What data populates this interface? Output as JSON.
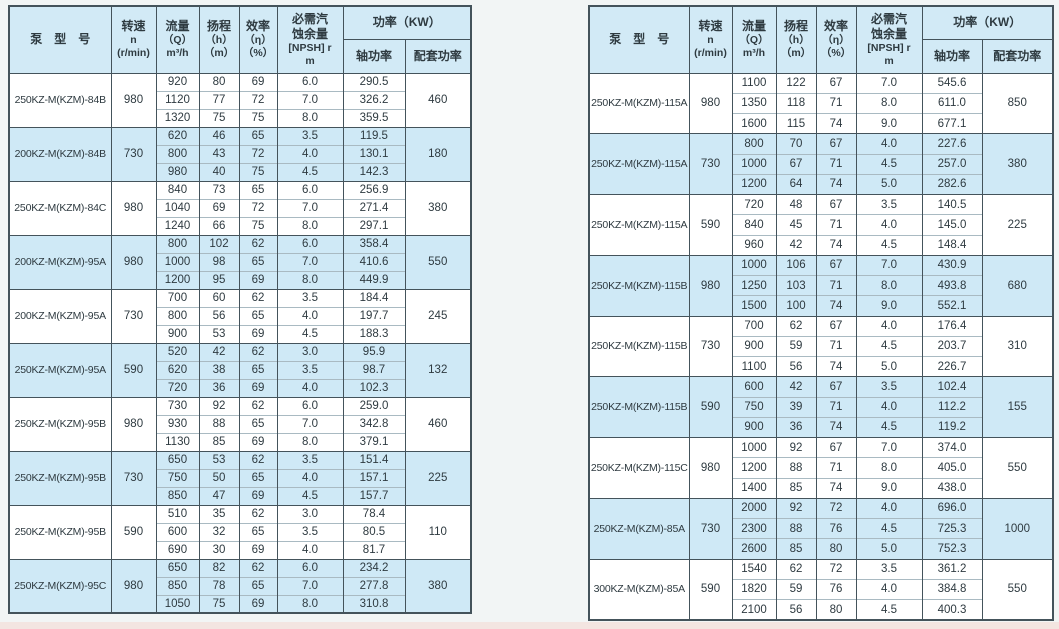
{
  "colors": {
    "page_bg": "#f2f5f5",
    "header_bg": "#d2eaf6",
    "shaded_row_bg": "#cfe9f6",
    "border_dark": "#44535b",
    "border_light": "#a9bac2",
    "text": "#2e3a40",
    "bottom_strip": "#f3e5e1"
  },
  "header": {
    "model": "泵　型　号",
    "speed": [
      "转速",
      "n",
      "(r/min)"
    ],
    "flow": [
      "流量",
      "（Q）",
      "m³/h"
    ],
    "head": [
      "扬程",
      "（h）",
      "（m）"
    ],
    "eff": [
      "效率",
      "（η）",
      "（%）"
    ],
    "npsh": [
      "必需汽",
      "蚀余量",
      "[NPSH] r",
      "m"
    ],
    "power": "功率（KW）",
    "shaft": "轴功率",
    "match": "配套功率"
  },
  "tables": [
    {
      "name": "left",
      "groups": [
        {
          "model": "250KZ-M(KZM)-84B",
          "speed": "980",
          "shaded": false,
          "match": "460",
          "rows": [
            [
              "920",
              "80",
              "69",
              "6.0",
              "290.5"
            ],
            [
              "1120",
              "77",
              "72",
              "7.0",
              "326.2"
            ],
            [
              "1320",
              "75",
              "75",
              "8.0",
              "359.5"
            ]
          ]
        },
        {
          "model": "200KZ-M(KZM)-84B",
          "speed": "730",
          "shaded": true,
          "match": "180",
          "rows": [
            [
              "620",
              "46",
              "65",
              "3.5",
              "119.5"
            ],
            [
              "800",
              "43",
              "72",
              "4.0",
              "130.1"
            ],
            [
              "980",
              "40",
              "75",
              "4.5",
              "142.3"
            ]
          ]
        },
        {
          "model": "250KZ-M(KZM)-84C",
          "speed": "980",
          "shaded": false,
          "match": "380",
          "rows": [
            [
              "840",
              "73",
              "65",
              "6.0",
              "256.9"
            ],
            [
              "1040",
              "69",
              "72",
              "7.0",
              "271.4"
            ],
            [
              "1240",
              "66",
              "75",
              "8.0",
              "297.1"
            ]
          ]
        },
        {
          "model": "200KZ-M(KZM)-95A",
          "speed": "980",
          "shaded": true,
          "match": "550",
          "rows": [
            [
              "800",
              "102",
              "62",
              "6.0",
              "358.4"
            ],
            [
              "1000",
              "98",
              "65",
              "7.0",
              "410.6"
            ],
            [
              "1200",
              "95",
              "69",
              "8.0",
              "449.9"
            ]
          ]
        },
        {
          "model": "200KZ-M(KZM)-95A",
          "speed": "730",
          "shaded": false,
          "match": "245",
          "rows": [
            [
              "700",
              "60",
              "62",
              "3.5",
              "184.4"
            ],
            [
              "800",
              "56",
              "65",
              "4.0",
              "197.7"
            ],
            [
              "900",
              "53",
              "69",
              "4.5",
              "188.3"
            ]
          ]
        },
        {
          "model": "250KZ-M(KZM)-95A",
          "speed": "590",
          "shaded": true,
          "match": "132",
          "rows": [
            [
              "520",
              "42",
              "62",
              "3.0",
              "95.9"
            ],
            [
              "620",
              "38",
              "65",
              "3.5",
              "98.7"
            ],
            [
              "720",
              "36",
              "69",
              "4.0",
              "102.3"
            ]
          ]
        },
        {
          "model": "250KZ-M(KZM)-95B",
          "speed": "980",
          "shaded": false,
          "match": "460",
          "rows": [
            [
              "730",
              "92",
              "62",
              "6.0",
              "259.0"
            ],
            [
              "930",
              "88",
              "65",
              "7.0",
              "342.8"
            ],
            [
              "1130",
              "85",
              "69",
              "8.0",
              "379.1"
            ]
          ]
        },
        {
          "model": "250KZ-M(KZM)-95B",
          "speed": "730",
          "shaded": true,
          "match": "225",
          "rows": [
            [
              "650",
              "53",
              "62",
              "3.5",
              "151.4"
            ],
            [
              "750",
              "50",
              "65",
              "4.0",
              "157.1"
            ],
            [
              "850",
              "47",
              "69",
              "4.5",
              "157.7"
            ]
          ]
        },
        {
          "model": "250KZ-M(KZM)-95B",
          "speed": "590",
          "shaded": false,
          "match": "110",
          "rows": [
            [
              "510",
              "35",
              "62",
              "3.0",
              "78.4"
            ],
            [
              "600",
              "32",
              "65",
              "3.5",
              "80.5"
            ],
            [
              "690",
              "30",
              "69",
              "4.0",
              "81.7"
            ]
          ]
        },
        {
          "model": "250KZ-M(KZM)-95C",
          "speed": "980",
          "shaded": true,
          "match": "380",
          "rows": [
            [
              "650",
              "82",
              "62",
              "6.0",
              "234.2"
            ],
            [
              "850",
              "78",
              "65",
              "7.0",
              "277.8"
            ],
            [
              "1050",
              "75",
              "69",
              "8.0",
              "310.8"
            ]
          ]
        }
      ]
    },
    {
      "name": "right",
      "groups": [
        {
          "model": "250KZ-M(KZM)-115A",
          "speed": "980",
          "shaded": false,
          "match": "850",
          "rows": [
            [
              "1100",
              "122",
              "67",
              "7.0",
              "545.6"
            ],
            [
              "1350",
              "118",
              "71",
              "8.0",
              "611.0"
            ],
            [
              "1600",
              "115",
              "74",
              "9.0",
              "677.1"
            ]
          ]
        },
        {
          "model": "250KZ-M(KZM)-115A",
          "speed": "730",
          "shaded": true,
          "match": "380",
          "rows": [
            [
              "800",
              "70",
              "67",
              "4.0",
              "227.6"
            ],
            [
              "1000",
              "67",
              "71",
              "4.5",
              "257.0"
            ],
            [
              "1200",
              "64",
              "74",
              "5.0",
              "282.6"
            ]
          ]
        },
        {
          "model": "250KZ-M(KZM)-115A",
          "speed": "590",
          "shaded": false,
          "match": "225",
          "rows": [
            [
              "720",
              "48",
              "67",
              "3.5",
              "140.5"
            ],
            [
              "840",
              "45",
              "71",
              "4.0",
              "145.0"
            ],
            [
              "960",
              "42",
              "74",
              "4.5",
              "148.4"
            ]
          ]
        },
        {
          "model": "250KZ-M(KZM)-115B",
          "speed": "980",
          "shaded": true,
          "match": "680",
          "rows": [
            [
              "1000",
              "106",
              "67",
              "7.0",
              "430.9"
            ],
            [
              "1250",
              "103",
              "71",
              "8.0",
              "493.8"
            ],
            [
              "1500",
              "100",
              "74",
              "9.0",
              "552.1"
            ]
          ]
        },
        {
          "model": "250KZ-M(KZM)-115B",
          "speed": "730",
          "shaded": false,
          "match": "310",
          "rows": [
            [
              "700",
              "62",
              "67",
              "4.0",
              "176.4"
            ],
            [
              "900",
              "59",
              "71",
              "4.5",
              "203.7"
            ],
            [
              "1100",
              "56",
              "74",
              "5.0",
              "226.7"
            ]
          ]
        },
        {
          "model": "250KZ-M(KZM)-115B",
          "speed": "590",
          "shaded": true,
          "match": "155",
          "rows": [
            [
              "600",
              "42",
              "67",
              "3.5",
              "102.4"
            ],
            [
              "750",
              "39",
              "71",
              "4.0",
              "112.2"
            ],
            [
              "900",
              "36",
              "74",
              "4.5",
              "119.2"
            ]
          ]
        },
        {
          "model": "250KZ-M(KZM)-115C",
          "speed": "980",
          "shaded": false,
          "match": "550",
          "rows": [
            [
              "1000",
              "92",
              "67",
              "7.0",
              "374.0"
            ],
            [
              "1200",
              "88",
              "71",
              "8.0",
              "405.0"
            ],
            [
              "1400",
              "85",
              "74",
              "9.0",
              "438.0"
            ]
          ]
        },
        {
          "model": "250KZ-M(KZM)-85A",
          "speed": "730",
          "shaded": true,
          "match": "1000",
          "rows": [
            [
              "2000",
              "92",
              "72",
              "4.0",
              "696.0"
            ],
            [
              "2300",
              "88",
              "76",
              "4.5",
              "725.3"
            ],
            [
              "2600",
              "85",
              "80",
              "5.0",
              "752.3"
            ]
          ]
        },
        {
          "model": "300KZ-M(KZM)-85A",
          "speed": "590",
          "shaded": false,
          "match": "550",
          "rows": [
            [
              "1540",
              "62",
              "72",
              "3.5",
              "361.2"
            ],
            [
              "1820",
              "59",
              "76",
              "4.0",
              "384.8"
            ],
            [
              "2100",
              "56",
              "80",
              "4.5",
              "400.3"
            ]
          ]
        }
      ]
    }
  ]
}
